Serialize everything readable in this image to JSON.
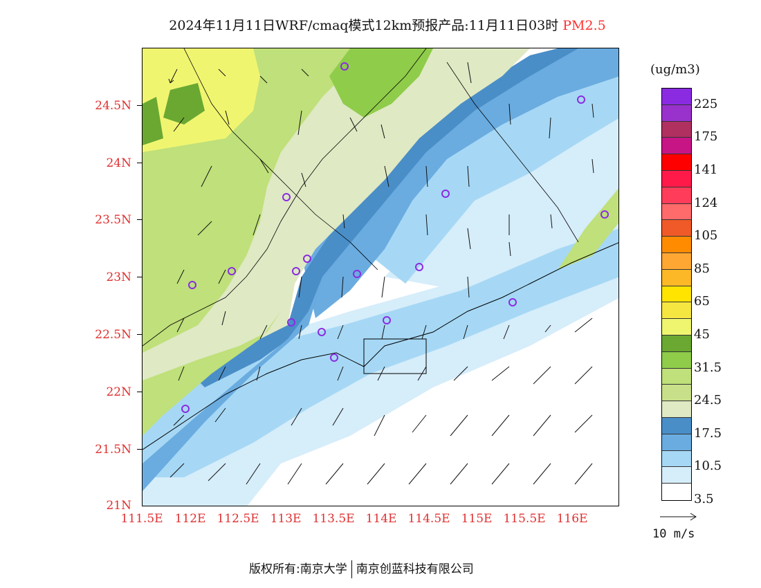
{
  "title": {
    "main": "2024年11月11日WRF/cmaq模式12km预报产品:11月11日03时",
    "variable": "PM2.5"
  },
  "axes": {
    "lat_labels": [
      "24.5N",
      "24N",
      "23.5N",
      "23N",
      "22.5N",
      "22N",
      "21.5N",
      "21N"
    ],
    "lon_labels": [
      "111.5E",
      "112E",
      "112.5E",
      "113E",
      "113.5E",
      "114E",
      "114.5E",
      "115E",
      "115.5E",
      "116E"
    ]
  },
  "legend": {
    "unit": "(ug/m3)",
    "bins": [
      {
        "color": "#8a2be2"
      },
      {
        "color": "#9932cc"
      },
      {
        "color": "#b03060"
      },
      {
        "color": "#c71585"
      },
      {
        "color": "#ff0000"
      },
      {
        "color": "#ff1a4a"
      },
      {
        "color": "#ff3d5a"
      },
      {
        "color": "#ff6a6a"
      },
      {
        "color": "#f05a28"
      },
      {
        "color": "#ff8c00"
      },
      {
        "color": "#ffa733"
      },
      {
        "color": "#fdb827"
      },
      {
        "color": "#ffe400"
      },
      {
        "color": "#f5e642"
      },
      {
        "color": "#f0f570"
      },
      {
        "color": "#6aa832"
      },
      {
        "color": "#8fcc4a"
      },
      {
        "color": "#bfe07a"
      },
      {
        "color": "#c8e08a"
      },
      {
        "color": "#dfe9c4"
      },
      {
        "color": "#4a8ec8"
      },
      {
        "color": "#6aace0"
      },
      {
        "color": "#a6d8f5"
      },
      {
        "color": "#d6edfa"
      },
      {
        "color": "#ffffff"
      }
    ],
    "tick_labels": [
      "225",
      "175",
      "141",
      "124",
      "105",
      "85",
      "65",
      "45",
      "31.5",
      "24.5",
      "17.5",
      "10.5",
      "3.5"
    ],
    "wind_reference": "10 m/s"
  },
  "footer": {
    "left": "版权所有:南京大学",
    "right": "南京创蓝科技有限公司"
  }
}
